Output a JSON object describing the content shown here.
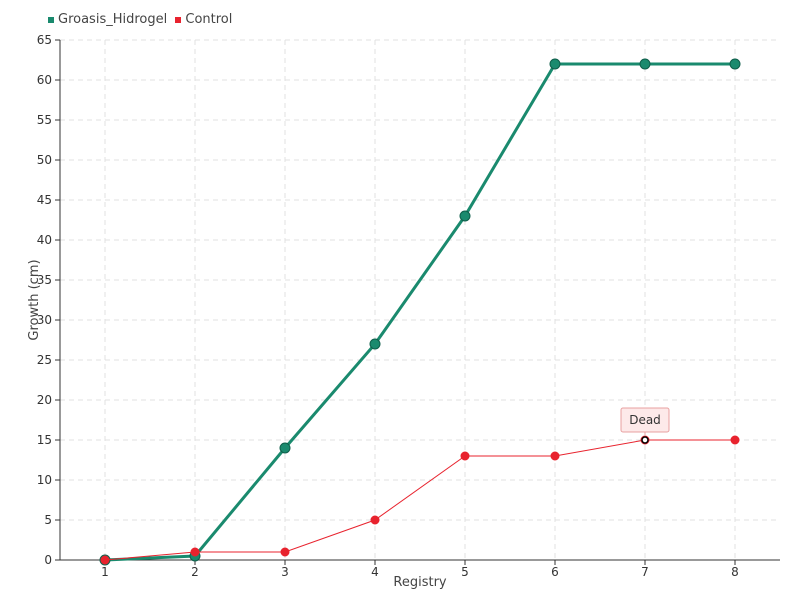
{
  "chart_data": {
    "type": "line",
    "x": [
      1,
      2,
      3,
      4,
      5,
      6,
      7,
      8
    ],
    "series": [
      {
        "name": "Groasis_Hidrogel",
        "color": "#1a8a6e",
        "values": [
          0,
          0.5,
          14,
          27,
          43,
          62,
          62,
          62
        ]
      },
      {
        "name": "Control",
        "color": "#e8232e",
        "values": [
          0,
          1,
          1,
          5,
          13,
          13,
          15,
          15
        ]
      }
    ],
    "xlabel": "Registry",
    "ylabel": "Growth (cm)",
    "ylim": [
      0,
      65
    ],
    "ytick_step": 5,
    "grid": true,
    "legend": "top-left",
    "annotations": [
      {
        "series": "Control",
        "x": 7,
        "y": 15,
        "text": "Dead"
      }
    ]
  }
}
